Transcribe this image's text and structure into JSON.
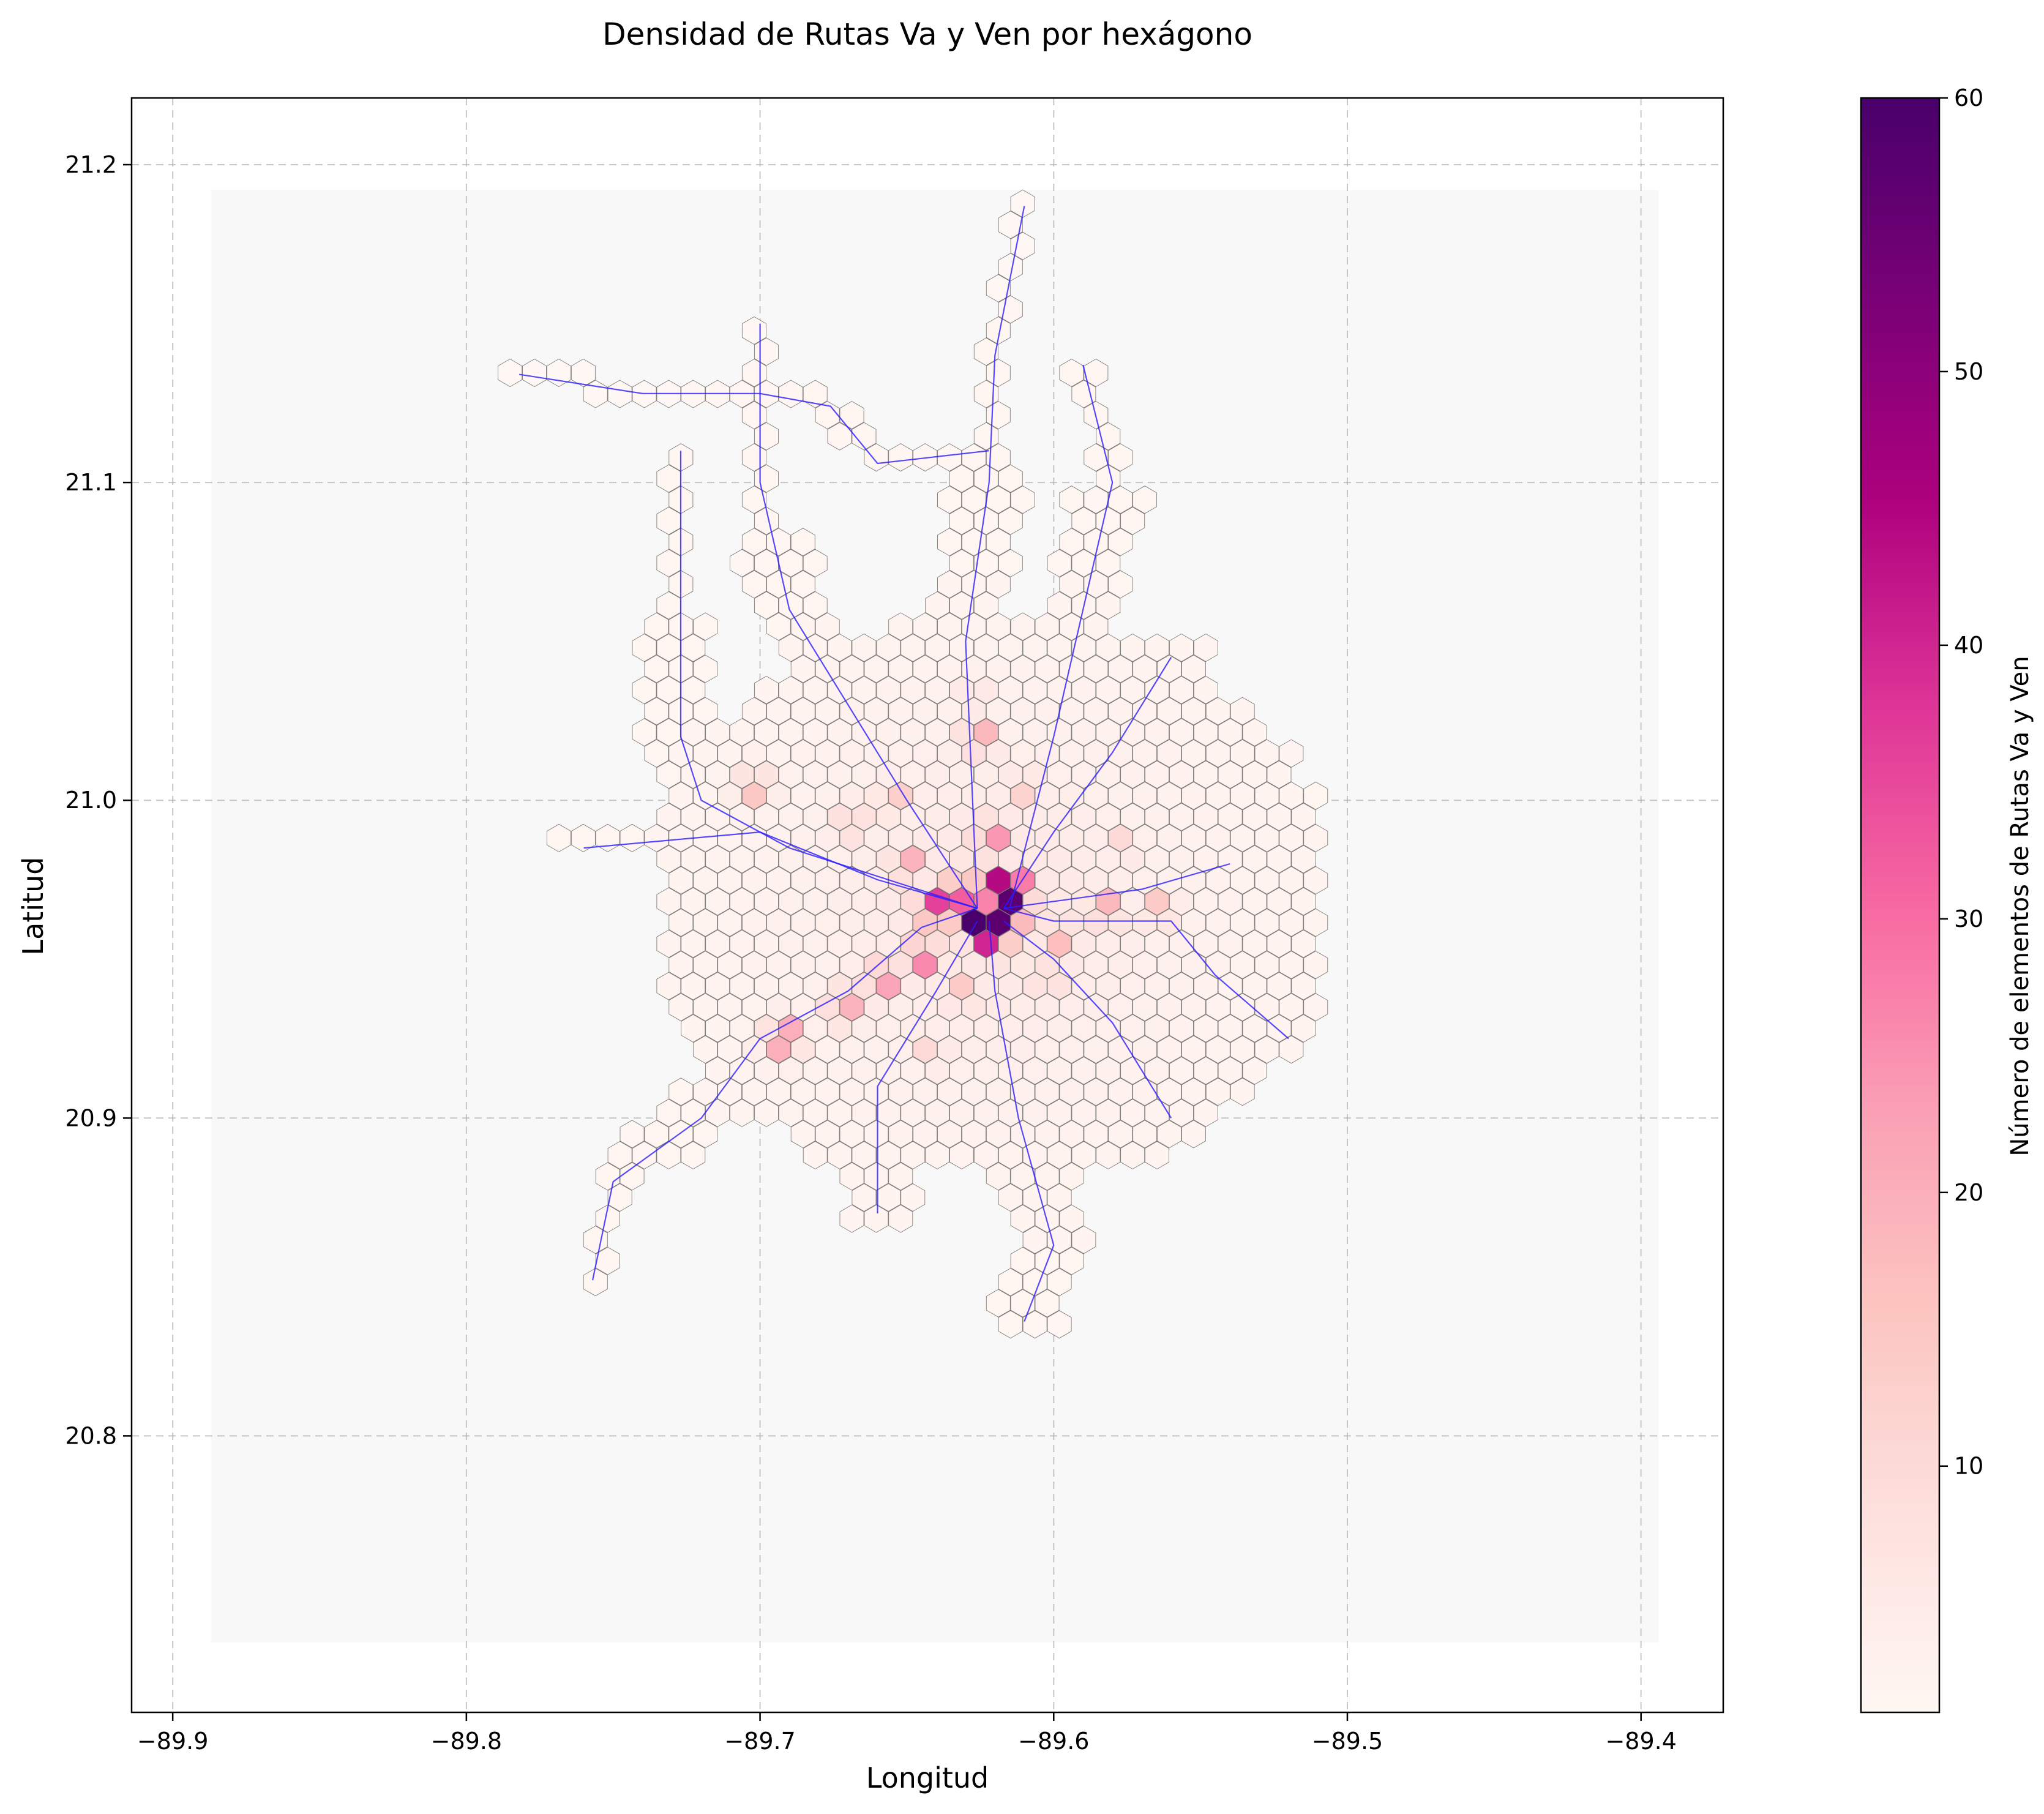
{
  "chart_data": {
    "type": "heatmap",
    "subtype": "hexbin-map",
    "title": "Densidad de Rutas Va y Ven por hexágono",
    "xlabel": "Longitud",
    "ylabel": "Latitud",
    "xlim": [
      -89.914,
      -89.372
    ],
    "ylim": [
      20.713,
      21.221
    ],
    "xticks": [
      -89.9,
      -89.8,
      -89.7,
      -89.6,
      -89.5,
      -89.4
    ],
    "xtick_labels": [
      "−89.9",
      "−89.8",
      "−89.7",
      "−89.6",
      "−89.5",
      "−89.4"
    ],
    "yticks": [
      20.8,
      20.9,
      21.0,
      21.1,
      21.2
    ],
    "ytick_labels": [
      "20.8",
      "20.9",
      "21.0",
      "21.1",
      "21.2"
    ],
    "grid": true,
    "colorbar": {
      "label": "Número de elementos de Rutas Va y Ven",
      "min": 1,
      "max": 60,
      "ticks": [
        10,
        20,
        30,
        40,
        50,
        60
      ],
      "tick_labels": [
        "10",
        "20",
        "30",
        "40",
        "50",
        "60"
      ],
      "colormap": [
        "#fff7f3",
        "#fde0dd",
        "#fcc5c0",
        "#fa9fb5",
        "#f768a1",
        "#dd3497",
        "#ae017e",
        "#7a0177",
        "#49006a"
      ]
    },
    "background_extent": {
      "lon": [
        -89.887,
        -89.394
      ],
      "lat": [
        20.735,
        21.192
      ]
    },
    "hexagon_size_deg": 0.0048,
    "center": {
      "lon": -89.622,
      "lat": 20.966
    },
    "hotspots": [
      {
        "lon": -89.626,
        "lat": 20.965,
        "count": 60
      },
      {
        "lon": -89.617,
        "lat": 20.965,
        "count": 57
      },
      {
        "lon": -89.621,
        "lat": 20.972,
        "count": 44
      },
      {
        "lon": -89.621,
        "lat": 20.958,
        "count": 40
      },
      {
        "lon": -89.64,
        "lat": 20.965,
        "count": 36
      },
      {
        "lon": -89.631,
        "lat": 20.972,
        "count": 32
      },
      {
        "lon": -89.612,
        "lat": 20.972,
        "count": 28
      },
      {
        "lon": -89.645,
        "lat": 20.951,
        "count": 26
      },
      {
        "lon": -89.621,
        "lat": 20.988,
        "count": 24
      },
      {
        "lon": -89.659,
        "lat": 20.944,
        "count": 22
      },
      {
        "lon": -89.692,
        "lat": 20.925,
        "count": 20
      },
      {
        "lon": -89.672,
        "lat": 20.935,
        "count": 19
      },
      {
        "lon": -89.65,
        "lat": 20.979,
        "count": 19
      },
      {
        "lon": -89.626,
        "lat": 21.019,
        "count": 18
      },
      {
        "lon": -89.583,
        "lat": 20.965,
        "count": 18
      },
      {
        "lon": -89.598,
        "lat": 20.958,
        "count": 17
      },
      {
        "lon": -89.602,
        "lat": 20.944,
        "count": 16
      },
      {
        "lon": -89.669,
        "lat": 20.993,
        "count": 17
      },
      {
        "lon": -89.702,
        "lat": 21.005,
        "count": 15
      },
      {
        "lon": -89.564,
        "lat": 20.965,
        "count": 14
      },
      {
        "lon": -89.631,
        "lat": 20.938,
        "count": 14
      },
      {
        "lon": -89.655,
        "lat": 21.0,
        "count": 13
      },
      {
        "lon": -89.61,
        "lat": 21.005,
        "count": 12
      },
      {
        "lon": -89.627,
        "lat": 21.033,
        "count": 11
      },
      {
        "lon": -89.576,
        "lat": 20.985,
        "count": 10
      },
      {
        "lon": -89.64,
        "lat": 20.92,
        "count": 10
      }
    ],
    "route_corridors": [
      {
        "name": "noroeste",
        "points": [
          [
            -89.782,
            21.134
          ],
          [
            -89.74,
            21.128
          ],
          [
            -89.7,
            21.128
          ],
          [
            -89.676,
            21.124
          ],
          [
            -89.66,
            21.106
          ],
          [
            -89.622,
            21.11
          ]
        ]
      },
      {
        "name": "norte",
        "points": [
          [
            -89.61,
            21.187
          ],
          [
            -89.62,
            21.14
          ],
          [
            -89.622,
            21.1
          ],
          [
            -89.63,
            21.05
          ],
          [
            -89.626,
            20.966
          ]
        ]
      },
      {
        "name": "norte-2",
        "points": [
          [
            -89.7,
            21.15
          ],
          [
            -89.7,
            21.1
          ],
          [
            -89.69,
            21.06
          ],
          [
            -89.67,
            21.03
          ],
          [
            -89.65,
            21.0
          ],
          [
            -89.626,
            20.966
          ]
        ]
      },
      {
        "name": "oeste-norte",
        "points": [
          [
            -89.727,
            21.11
          ],
          [
            -89.727,
            21.06
          ],
          [
            -89.727,
            21.02
          ],
          [
            -89.72,
            21.0
          ],
          [
            -89.69,
            20.985
          ],
          [
            -89.626,
            20.966
          ]
        ]
      },
      {
        "name": "noreste",
        "points": [
          [
            -89.59,
            21.137
          ],
          [
            -89.58,
            21.1
          ],
          [
            -89.59,
            21.06
          ],
          [
            -89.6,
            21.02
          ],
          [
            -89.615,
            20.966
          ]
        ]
      },
      {
        "name": "noreste-2",
        "points": [
          [
            -89.56,
            21.045
          ],
          [
            -89.58,
            21.015
          ],
          [
            -89.6,
            20.99
          ],
          [
            -89.617,
            20.966
          ]
        ]
      },
      {
        "name": "este",
        "points": [
          [
            -89.52,
            20.925
          ],
          [
            -89.545,
            20.945
          ],
          [
            -89.56,
            20.962
          ],
          [
            -89.6,
            20.962
          ],
          [
            -89.617,
            20.966
          ]
        ]
      },
      {
        "name": "este-2",
        "points": [
          [
            -89.54,
            20.98
          ],
          [
            -89.57,
            20.972
          ],
          [
            -89.617,
            20.966
          ]
        ]
      },
      {
        "name": "sur",
        "points": [
          [
            -89.61,
            20.836
          ],
          [
            -89.6,
            20.86
          ],
          [
            -89.612,
            20.9
          ],
          [
            -89.62,
            20.94
          ],
          [
            -89.622,
            20.962
          ]
        ]
      },
      {
        "name": "sur-2",
        "points": [
          [
            -89.66,
            20.87
          ],
          [
            -89.66,
            20.91
          ],
          [
            -89.64,
            20.94
          ],
          [
            -89.626,
            20.962
          ]
        ]
      },
      {
        "name": "suroeste",
        "points": [
          [
            -89.757,
            20.849
          ],
          [
            -89.75,
            20.88
          ],
          [
            -89.72,
            20.9
          ],
          [
            -89.7,
            20.925
          ],
          [
            -89.67,
            20.94
          ],
          [
            -89.645,
            20.96
          ],
          [
            -89.626,
            20.966
          ]
        ]
      },
      {
        "name": "oeste",
        "points": [
          [
            -89.76,
            20.985
          ],
          [
            -89.7,
            20.99
          ],
          [
            -89.66,
            20.975
          ],
          [
            -89.626,
            20.966
          ]
        ]
      },
      {
        "name": "sureste",
        "points": [
          [
            -89.56,
            20.9
          ],
          [
            -89.58,
            20.93
          ],
          [
            -89.6,
            20.95
          ],
          [
            -89.617,
            20.962
          ]
        ]
      }
    ]
  }
}
